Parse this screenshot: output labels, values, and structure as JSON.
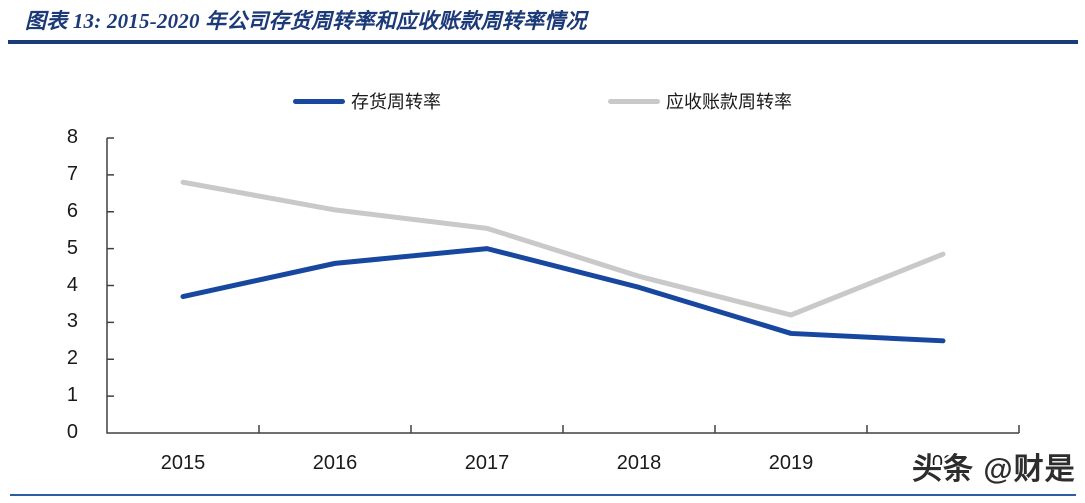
{
  "header": {
    "title": "图表 13:  2015-2020 年公司存货周转率和应收账款周转率情况"
  },
  "watermark": "头条 @财是",
  "colors": {
    "title_navy": "#1d3a78",
    "title_rule": "#1b3c78",
    "axis": "#404040",
    "tick_label": "#1a1a1a",
    "bottom_rule": "#2e5da6",
    "series_inventory": "#17479e",
    "series_receivable": "#c9c9c9"
  },
  "chart_data": {
    "type": "line",
    "title": "2015-2020 年公司存货周转率和应收账款周转率情况",
    "categories": [
      "2015",
      "2016",
      "2017",
      "2018",
      "2019",
      "2020"
    ],
    "series": [
      {
        "name": "存货周转率",
        "color": "#17479e",
        "values": [
          3.7,
          4.6,
          5.0,
          3.95,
          2.7,
          2.5
        ]
      },
      {
        "name": "应收账款周转率",
        "color": "#c9c9c9",
        "values": [
          6.8,
          6.05,
          5.55,
          4.25,
          3.2,
          4.85
        ]
      }
    ],
    "xlabel": "",
    "ylabel": "",
    "ylim": [
      0,
      8
    ],
    "y_ticks": [
      0,
      1,
      2,
      3,
      4,
      5,
      6,
      7,
      8
    ],
    "grid": false,
    "legend_position": "top"
  }
}
